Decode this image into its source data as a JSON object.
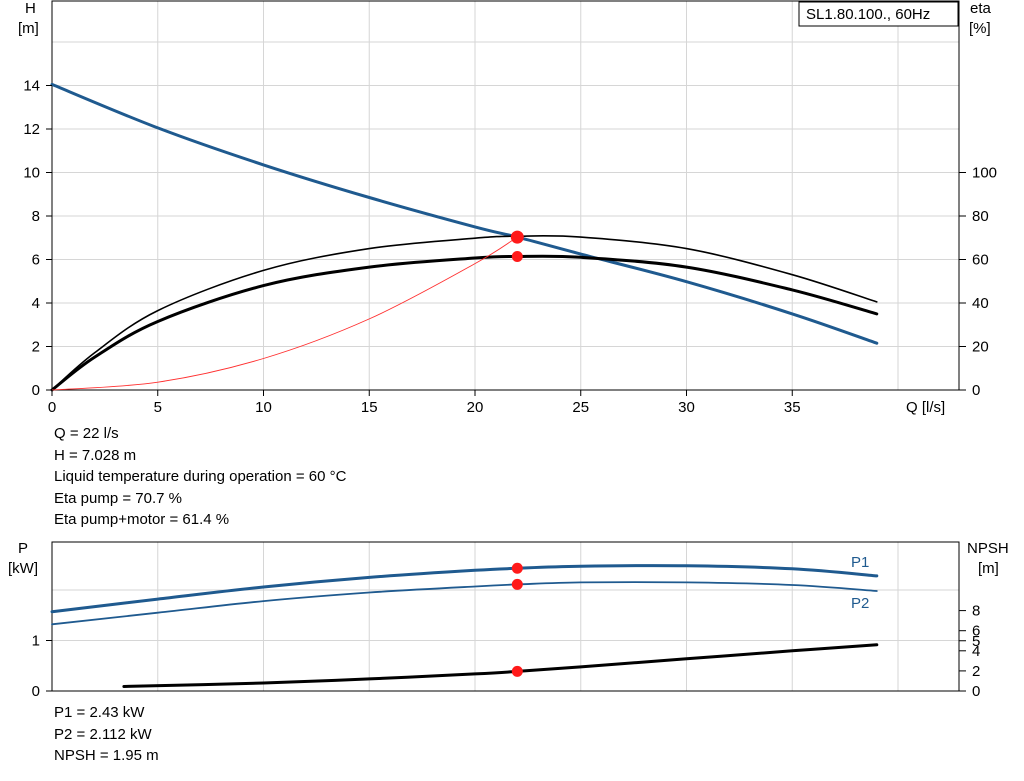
{
  "chart_data": [
    {
      "type": "line",
      "legend_box": "SL1.80.100., 60Hz",
      "xlabel": "Q [l/s]",
      "ylabel_left": [
        "H",
        "[m]"
      ],
      "ylabel_right": [
        "eta",
        "[%]"
      ],
      "xlim": [
        0,
        42
      ],
      "ylim_left": [
        0,
        18
      ],
      "ylim_right": [
        0,
        180
      ],
      "x_ticks": [
        0,
        5,
        10,
        15,
        20,
        25,
        30,
        35
      ],
      "y_ticks_left": [
        0,
        2,
        4,
        6,
        8,
        10,
        12,
        14
      ],
      "y_ticks_right": [
        0,
        20,
        40,
        60,
        80,
        100
      ],
      "grid": true,
      "series": [
        {
          "axis": "left",
          "color": "#1f5a8f",
          "x": [
            0,
            5,
            10,
            15,
            20,
            22,
            25,
            30,
            35,
            39
          ],
          "y": [
            14.05,
            12.05,
            10.35,
            8.85,
            7.5,
            7.03,
            6.25,
            4.98,
            3.5,
            2.15
          ]
        },
        {
          "axis": "right",
          "color": "#000000",
          "x": [
            0,
            2,
            5,
            10,
            15,
            20,
            22,
            25,
            30,
            35,
            39
          ],
          "y": [
            0,
            17,
            36.5,
            55,
            65,
            69.8,
            70.7,
            70.3,
            65,
            53,
            40.5
          ]
        },
        {
          "axis": "right",
          "color": "#000000",
          "x": [
            0,
            2,
            5,
            10,
            15,
            20,
            22,
            25,
            30,
            35,
            39
          ],
          "y": [
            0,
            15,
            31.5,
            48,
            56.5,
            60.7,
            61.4,
            61,
            56.5,
            46,
            35
          ]
        },
        {
          "axis": "left",
          "color": "#ff3030",
          "x": [
            0,
            5,
            10,
            15,
            20,
            22
          ],
          "y": [
            0,
            0.36,
            1.45,
            3.27,
            5.81,
            7.03
          ]
        }
      ],
      "markers": [
        {
          "axis": "left",
          "x": 22,
          "y": 7.028
        },
        {
          "axis": "right",
          "x": 22,
          "y": 61.4
        }
      ]
    },
    {
      "type": "line",
      "ylabel_left": [
        "P",
        "[kW]"
      ],
      "ylabel_right": [
        "NPSH",
        "[m]"
      ],
      "xlim": [
        0,
        42
      ],
      "ylim_left": [
        0,
        3
      ],
      "ylim_right": [
        0,
        25
      ],
      "y_ticks_left": [
        0,
        1
      ],
      "y_ticks_right": [
        0,
        2,
        4,
        5,
        6,
        8
      ],
      "grid": true,
      "series": [
        {
          "name": "P1",
          "axis": "left",
          "color": "#1f5a8f",
          "x": [
            0,
            5,
            10,
            15,
            20,
            22,
            25,
            30,
            35,
            39
          ],
          "y": [
            1.57,
            1.82,
            2.06,
            2.25,
            2.39,
            2.43,
            2.47,
            2.48,
            2.42,
            2.28
          ]
        },
        {
          "name": "P2",
          "axis": "left",
          "color": "#1f5a8f",
          "x": [
            0,
            5,
            10,
            15,
            20,
            22,
            25,
            30,
            35,
            39
          ],
          "y": [
            1.32,
            1.55,
            1.78,
            1.95,
            2.07,
            2.11,
            2.15,
            2.15,
            2.1,
            1.98
          ]
        },
        {
          "axis": "right",
          "color": "#000000",
          "x": [
            3.4,
            10,
            15,
            20,
            22,
            25,
            30,
            35,
            39
          ],
          "y": [
            0.45,
            0.8,
            1.2,
            1.7,
            1.95,
            2.4,
            3.2,
            4.0,
            4.6
          ]
        }
      ],
      "markers": [
        {
          "axis": "left",
          "x": 22,
          "y": 2.43
        },
        {
          "axis": "left",
          "x": 22,
          "y": 2.112
        },
        {
          "axis": "right",
          "x": 22,
          "y": 1.95
        }
      ]
    }
  ],
  "operating_point": {
    "q": "Q = 22 l/s",
    "h": "H = 7.028 m",
    "temp": "Liquid temperature during operation = 60 °C",
    "eta_pump": "Eta pump = 70.7 %",
    "eta_total": "Eta pump+motor = 61.4 %"
  },
  "power_point": {
    "p1": "P1 = 2.43 kW",
    "p2": "P2 = 2.112 kW",
    "npsh": "NPSH = 1.95 m"
  }
}
